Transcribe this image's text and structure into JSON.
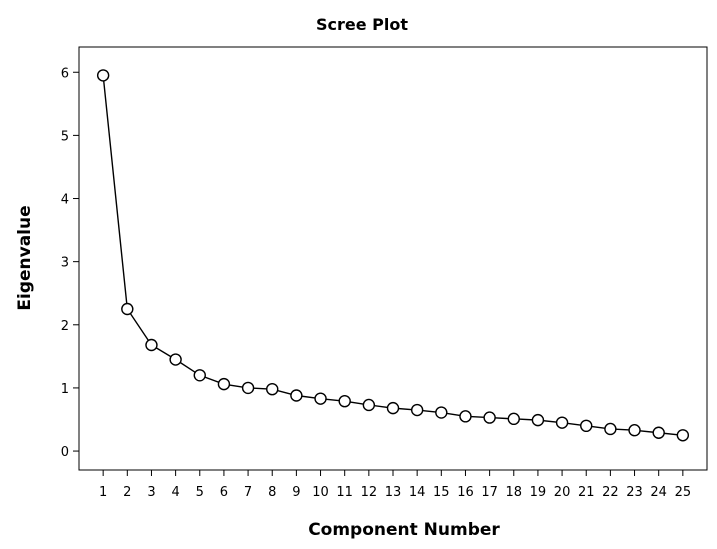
{
  "chart_data": {
    "type": "line",
    "title": "Scree Plot",
    "xlabel": "Component Number",
    "ylabel": "Eigenvalue",
    "x": [
      1,
      2,
      3,
      4,
      5,
      6,
      7,
      8,
      9,
      10,
      11,
      12,
      13,
      14,
      15,
      16,
      17,
      18,
      19,
      20,
      21,
      22,
      23,
      24,
      25
    ],
    "series": [
      {
        "values": [
          5.95,
          2.25,
          1.68,
          1.45,
          1.2,
          1.06,
          1.0,
          0.98,
          0.88,
          0.83,
          0.79,
          0.73,
          0.68,
          0.65,
          0.61,
          0.55,
          0.53,
          0.51,
          0.49,
          0.45,
          0.4,
          0.35,
          0.33,
          0.29,
          0.25
        ]
      }
    ],
    "xlim": [
      0,
      26
    ],
    "ylim": [
      -0.3,
      6.4
    ],
    "y_ticks": [
      0,
      1,
      2,
      3,
      4,
      5,
      6
    ],
    "x_ticks": [
      1,
      2,
      3,
      4,
      5,
      6,
      7,
      8,
      9,
      10,
      11,
      12,
      13,
      14,
      15,
      16,
      17,
      18,
      19,
      20,
      21,
      22,
      23,
      24,
      25
    ],
    "grid": false,
    "legend": "none",
    "marker": "open-circle",
    "colors": {
      "line": "#000000",
      "marker_fill": "#ffffff",
      "marker_stroke": "#000000",
      "frame": "#000000",
      "background": "#ffffff"
    }
  }
}
